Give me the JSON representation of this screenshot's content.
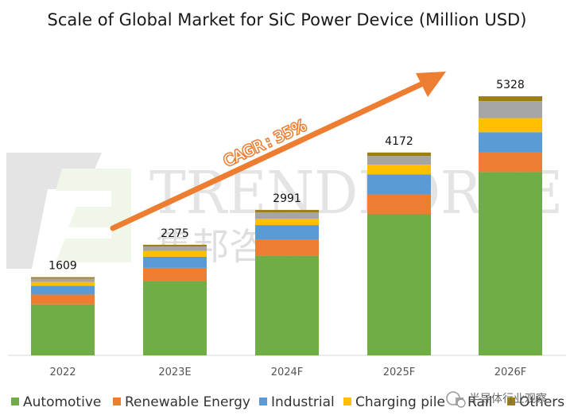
{
  "chart_data": {
    "type": "bar",
    "stacked": true,
    "title": "Scale of Global Market for SiC Power Device (Million USD)",
    "categories": [
      "2022",
      "2023E",
      "2024F",
      "2025F",
      "2026F"
    ],
    "totals": [
      1609,
      2275,
      2991,
      4172,
      5328
    ],
    "total_labels": [
      "1609",
      "2275",
      "2991",
      "4172",
      "5328"
    ],
    "ylim": [
      0,
      6000
    ],
    "grid": false,
    "legend_position": "bottom",
    "series": [
      {
        "name": "Automotive",
        "color": "#70ad47",
        "values": [
          1050,
          1530,
          2050,
          2910,
          3770
        ]
      },
      {
        "name": "Renewable Energy",
        "color": "#ed7d31",
        "values": [
          200,
          270,
          330,
          400,
          400
        ]
      },
      {
        "name": "Industrial",
        "color": "#5b9bd5",
        "values": [
          180,
          230,
          300,
          410,
          420
        ]
      },
      {
        "name": "Charging pile",
        "color": "#ffc000",
        "values": [
          80,
          120,
          130,
          200,
          290
        ]
      },
      {
        "name": "Rail",
        "color": "#a5a5a5",
        "values": [
          70,
          90,
          130,
          180,
          350
        ]
      },
      {
        "name": "Others",
        "color": "#9c7f10",
        "values": [
          29,
          35,
          51,
          72,
          98
        ]
      }
    ],
    "annotation": "CAGR : 35%"
  },
  "watermark": {
    "brand": "TRENDFORCE",
    "brand_cn": "集邦咨询"
  },
  "source_badge": "半导体行业观察"
}
